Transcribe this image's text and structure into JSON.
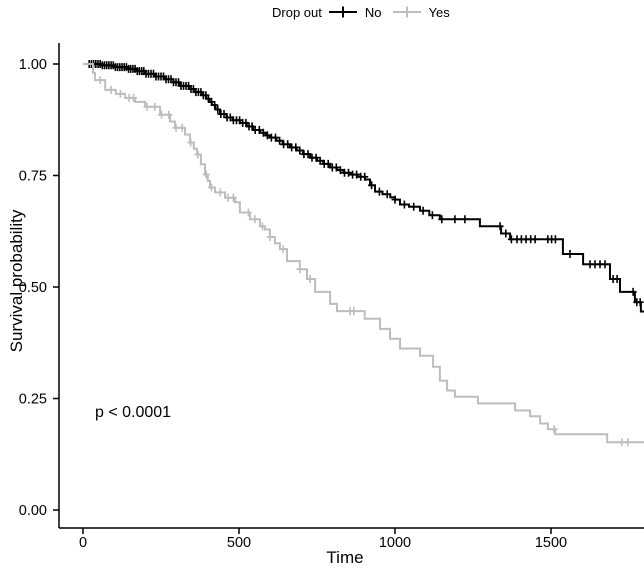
{
  "legend": {
    "title": "Drop out",
    "items": [
      {
        "label": "No"
      },
      {
        "label": "Yes"
      }
    ]
  },
  "annotations": {
    "p_value": "p < 0.0001"
  },
  "chart_data": {
    "type": "line",
    "subtype": "kaplan-meier-step-curve",
    "title": "",
    "xlabel": "Time",
    "ylabel": "Survival probability",
    "xlim": [
      0,
      1800
    ],
    "ylim": [
      0,
      1
    ],
    "x_ticks": [
      0,
      500,
      1000,
      1500
    ],
    "y_ticks": [
      "0.00",
      "0.25",
      "0.50",
      "0.75",
      "1.00"
    ],
    "legend_position": "top",
    "grid": false,
    "series": [
      {
        "name": "No",
        "color": "#000000",
        "steps": [
          [
            0,
            1.0
          ],
          [
            60,
            0.997
          ],
          [
            100,
            0.993
          ],
          [
            140,
            0.989
          ],
          [
            170,
            0.984
          ],
          [
            200,
            0.978
          ],
          [
            230,
            0.972
          ],
          [
            260,
            0.966
          ],
          [
            290,
            0.959
          ],
          [
            311,
            0.951
          ],
          [
            340,
            0.944
          ],
          [
            360,
            0.937
          ],
          [
            380,
            0.93
          ],
          [
            395,
            0.922
          ],
          [
            405,
            0.915
          ],
          [
            413,
            0.908
          ],
          [
            425,
            0.898
          ],
          [
            439,
            0.888
          ],
          [
            460,
            0.88
          ],
          [
            480,
            0.874
          ],
          [
            503,
            0.868
          ],
          [
            525,
            0.86
          ],
          [
            545,
            0.852
          ],
          [
            567,
            0.846
          ],
          [
            585,
            0.84
          ],
          [
            599,
            0.835
          ],
          [
            620,
            0.828
          ],
          [
            640,
            0.82
          ],
          [
            663,
            0.813
          ],
          [
            685,
            0.806
          ],
          [
            705,
            0.798
          ],
          [
            728,
            0.79
          ],
          [
            750,
            0.783
          ],
          [
            770,
            0.776
          ],
          [
            792,
            0.768
          ],
          [
            815,
            0.762
          ],
          [
            835,
            0.756
          ],
          [
            856,
            0.752
          ],
          [
            880,
            0.747
          ],
          [
            904,
            0.741
          ],
          [
            920,
            0.728
          ],
          [
            936,
            0.714
          ],
          [
            960,
            0.708
          ],
          [
            985,
            0.701
          ],
          [
            1000,
            0.696
          ],
          [
            1016,
            0.685
          ],
          [
            1045,
            0.68
          ],
          [
            1080,
            0.671
          ],
          [
            1110,
            0.661
          ],
          [
            1144,
            0.652
          ],
          [
            1272,
            0.636
          ],
          [
            1340,
            0.62
          ],
          [
            1369,
            0.607
          ],
          [
            1538,
            0.574
          ],
          [
            1603,
            0.551
          ],
          [
            1689,
            0.518
          ],
          [
            1721,
            0.489
          ],
          [
            1769,
            0.466
          ],
          [
            1788,
            0.445
          ]
        ],
        "censor_times": [
          20,
          27,
          34,
          41,
          48,
          55,
          62,
          69,
          76,
          83,
          90,
          97,
          104,
          111,
          118,
          125,
          132,
          139,
          146,
          153,
          160,
          167,
          174,
          181,
          188,
          195,
          202,
          210,
          218,
          226,
          234,
          242,
          250,
          258,
          266,
          274,
          282,
          290,
          298,
          306,
          314,
          322,
          330,
          338,
          346,
          354,
          362,
          370,
          378,
          386,
          394,
          402,
          412,
          422,
          432,
          442,
          452,
          462,
          472,
          482,
          492,
          502,
          512,
          522,
          532,
          542,
          552,
          565,
          578,
          591,
          604,
          617,
          630,
          643,
          656,
          669,
          682,
          695,
          708,
          721,
          734,
          747,
          760,
          773,
          786,
          799,
          812,
          825,
          838,
          851,
          864,
          877,
          890,
          903,
          925,
          950,
          975,
          1000,
          1030,
          1060,
          1090,
          1120,
          1150,
          1192,
          1224,
          1337,
          1355,
          1373,
          1391,
          1405,
          1420,
          1435,
          1449,
          1490,
          1502,
          1514,
          1561,
          1625,
          1641,
          1657,
          1673,
          1699,
          1712,
          1763,
          1775,
          1786
        ]
      },
      {
        "name": "Yes",
        "color": "#bdbdbd",
        "steps": [
          [
            0,
            1.0
          ],
          [
            32,
            0.98
          ],
          [
            38,
            0.964
          ],
          [
            71,
            0.942
          ],
          [
            105,
            0.933
          ],
          [
            135,
            0.924
          ],
          [
            167,
            0.915
          ],
          [
            199,
            0.904
          ],
          [
            247,
            0.886
          ],
          [
            279,
            0.871
          ],
          [
            295,
            0.857
          ],
          [
            327,
            0.842
          ],
          [
            343,
            0.824
          ],
          [
            355,
            0.81
          ],
          [
            365,
            0.797
          ],
          [
            378,
            0.775
          ],
          [
            391,
            0.752
          ],
          [
            400,
            0.738
          ],
          [
            407,
            0.723
          ],
          [
            423,
            0.712
          ],
          [
            455,
            0.7
          ],
          [
            487,
            0.69
          ],
          [
            503,
            0.667
          ],
          [
            535,
            0.652
          ],
          [
            567,
            0.636
          ],
          [
            583,
            0.629
          ],
          [
            599,
            0.612
          ],
          [
            615,
            0.598
          ],
          [
            631,
            0.585
          ],
          [
            654,
            0.558
          ],
          [
            695,
            0.54
          ],
          [
            718,
            0.518
          ],
          [
            744,
            0.489
          ],
          [
            792,
            0.462
          ],
          [
            814,
            0.446
          ],
          [
            903,
            0.429
          ],
          [
            952,
            0.406
          ],
          [
            984,
            0.384
          ],
          [
            1016,
            0.362
          ],
          [
            1080,
            0.346
          ],
          [
            1122,
            0.321
          ],
          [
            1144,
            0.29
          ],
          [
            1167,
            0.268
          ],
          [
            1192,
            0.254
          ],
          [
            1266,
            0.239
          ],
          [
            1385,
            0.223
          ],
          [
            1433,
            0.21
          ],
          [
            1465,
            0.194
          ],
          [
            1490,
            0.181
          ],
          [
            1513,
            0.17
          ],
          [
            1680,
            0.152
          ]
        ],
        "censor_times": [
          55,
          90,
          120,
          148,
          162,
          205,
          230,
          252,
          275,
          298,
          318,
          345,
          368,
          395,
          412,
          440,
          465,
          482,
          530,
          551,
          575,
          599,
          641,
          695,
          728,
          856,
          868,
          1510,
          1727,
          1746
        ]
      }
    ]
  }
}
